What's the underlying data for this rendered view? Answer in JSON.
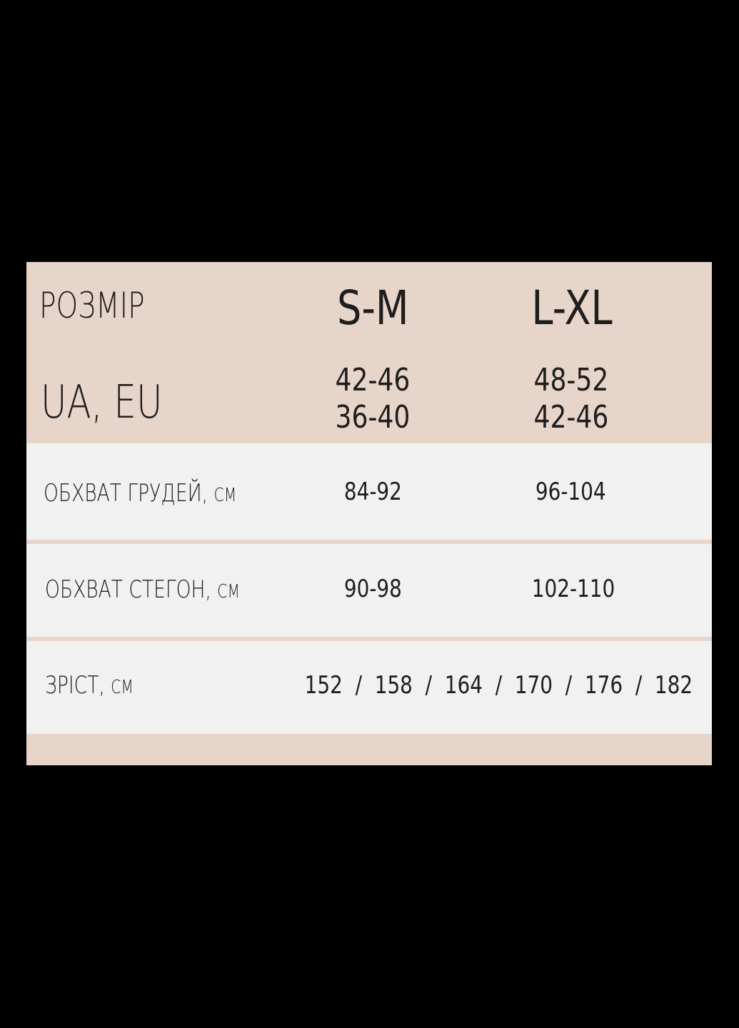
{
  "header": {
    "size_label": "РОЗМІР",
    "region_label": "UA, EU",
    "sizes": [
      {
        "name": "S-M",
        "ua": "42-46",
        "eu": "36-40"
      },
      {
        "name": "L-XL",
        "ua": "48-52",
        "eu": "42-46"
      }
    ]
  },
  "rows": [
    {
      "label": "ОБХВАТ ГРУДЕЙ,",
      "unit": "СМ",
      "values": [
        "84-92",
        "96-104"
      ]
    },
    {
      "label": "ОБХВАТ СТЕГОН,",
      "unit": "СМ",
      "values": [
        "90-98",
        "102-110"
      ]
    },
    {
      "label": "ЗРІСТ,",
      "unit": "СМ",
      "value": "152  /  158  /  164  /  170  /  176  /  182"
    }
  ],
  "colors": {
    "header_bg": "#e8d5ca",
    "row_bg": "#f1f1f1",
    "background": "#000000"
  }
}
